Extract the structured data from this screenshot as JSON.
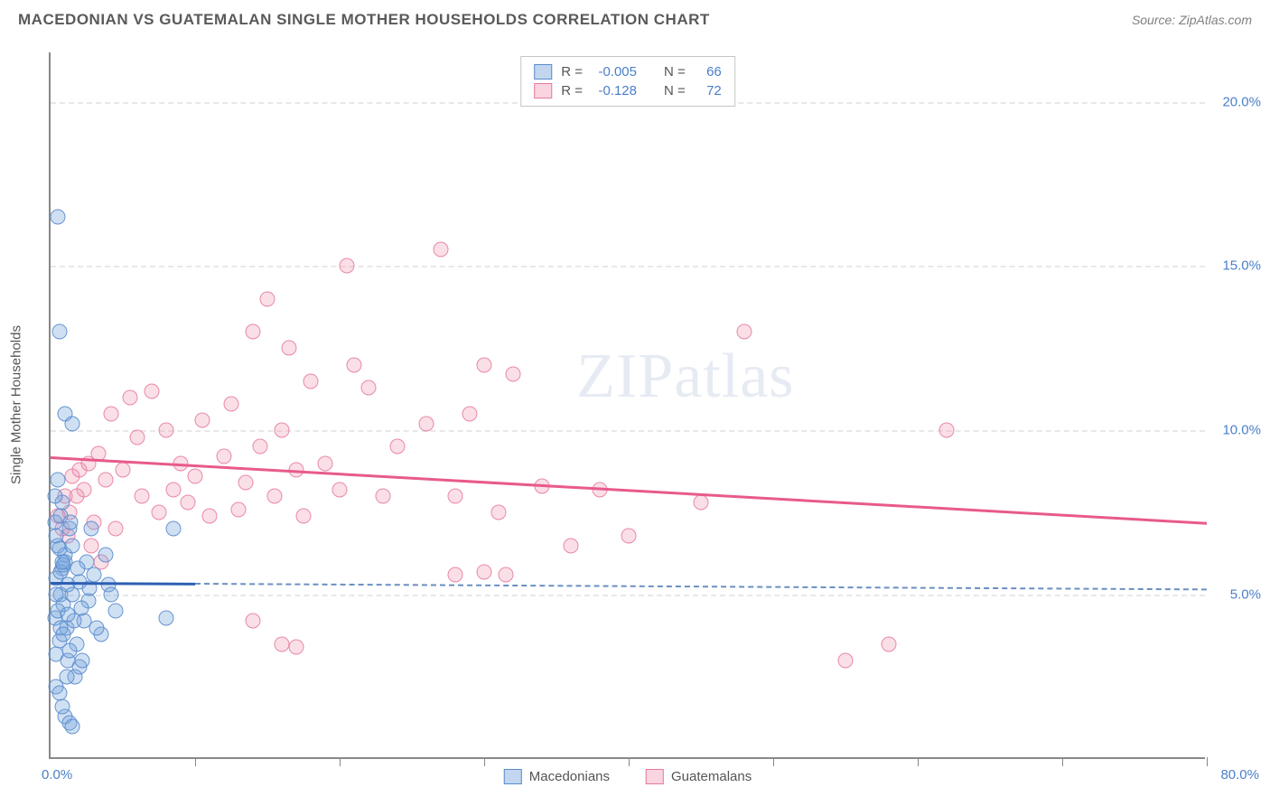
{
  "header": {
    "title": "MACEDONIAN VS GUATEMALAN SINGLE MOTHER HOUSEHOLDS CORRELATION CHART",
    "source": "Source: ZipAtlas.com"
  },
  "chart": {
    "type": "scatter",
    "ylabel": "Single Mother Households",
    "watermark": "ZIPatlas",
    "background_color": "#ffffff",
    "grid_color": "#e8e8e8",
    "axis_color": "#888888",
    "xlim": [
      0,
      80
    ],
    "ylim": [
      0,
      21.5
    ],
    "xticks": [
      0,
      10,
      20,
      30,
      40,
      50,
      60,
      70,
      80
    ],
    "xtick_labels": {
      "left": "0.0%",
      "right": "80.0%"
    },
    "yticks": [
      5,
      10,
      15,
      20
    ],
    "ytick_labels": [
      "5.0%",
      "10.0%",
      "15.0%",
      "20.0%"
    ],
    "marker_size": 17,
    "series": {
      "macedonians": {
        "label": "Macedonians",
        "color_fill": "rgba(121,165,220,0.35)",
        "color_stroke": "rgba(90,140,205,0.9)",
        "r": "-0.005",
        "n": "66",
        "trend": {
          "y_start": 5.4,
          "y_end": 5.2,
          "x_start": 0,
          "x_end_solid": 10,
          "x_end_dash": 80,
          "color": "#2d5fb3"
        },
        "points": [
          [
            0.3,
            7.2
          ],
          [
            0.5,
            16.5
          ],
          [
            0.6,
            13.0
          ],
          [
            0.5,
            6.5
          ],
          [
            0.8,
            5.8
          ],
          [
            1.0,
            6.2
          ],
          [
            0.4,
            5.5
          ],
          [
            0.7,
            5.0
          ],
          [
            1.2,
            5.3
          ],
          [
            0.9,
            4.7
          ],
          [
            0.3,
            4.3
          ],
          [
            1.1,
            4.0
          ],
          [
            0.6,
            3.6
          ],
          [
            0.4,
            3.2
          ],
          [
            0.8,
            7.8
          ],
          [
            1.3,
            7.0
          ],
          [
            1.0,
            6.0
          ],
          [
            0.5,
            4.5
          ],
          [
            0.7,
            5.7
          ],
          [
            1.5,
            5.0
          ],
          [
            2.0,
            5.4
          ],
          [
            2.3,
            4.2
          ],
          [
            2.5,
            6.0
          ],
          [
            3.0,
            5.6
          ],
          [
            3.5,
            3.8
          ],
          [
            4.0,
            5.3
          ],
          [
            4.5,
            4.5
          ],
          [
            1.0,
            1.3
          ],
          [
            1.3,
            1.1
          ],
          [
            0.8,
            1.6
          ],
          [
            1.5,
            1.0
          ],
          [
            1.7,
            2.5
          ],
          [
            2.0,
            2.8
          ],
          [
            1.2,
            3.0
          ],
          [
            0.4,
            2.2
          ],
          [
            0.6,
            2.0
          ],
          [
            1.8,
            3.5
          ],
          [
            2.2,
            3.0
          ],
          [
            2.6,
            4.8
          ],
          [
            0.5,
            8.5
          ],
          [
            0.3,
            8.0
          ],
          [
            0.7,
            7.4
          ],
          [
            1.4,
            7.2
          ],
          [
            2.8,
            7.0
          ],
          [
            3.2,
            4.0
          ],
          [
            1.1,
            2.5
          ],
          [
            0.9,
            5.9
          ],
          [
            1.6,
            4.2
          ],
          [
            0.4,
            6.8
          ],
          [
            0.7,
            4.0
          ],
          [
            1.3,
            3.3
          ],
          [
            1.9,
            5.8
          ],
          [
            2.7,
            5.2
          ],
          [
            0.6,
            6.4
          ],
          [
            0.9,
            3.8
          ],
          [
            1.5,
            6.5
          ],
          [
            2.1,
            4.6
          ],
          [
            0.4,
            5.0
          ],
          [
            0.8,
            6.0
          ],
          [
            1.2,
            4.4
          ],
          [
            3.8,
            6.2
          ],
          [
            4.2,
            5.0
          ],
          [
            1.0,
            10.5
          ],
          [
            1.5,
            10.2
          ],
          [
            8.5,
            7.0
          ],
          [
            8.0,
            4.3
          ]
        ]
      },
      "guatemalans": {
        "label": "Guatemalans",
        "color_fill": "rgba(240,150,175,0.3)",
        "color_stroke": "rgba(230,120,155,0.85)",
        "r": "-0.128",
        "n": "72",
        "trend": {
          "y_start": 9.2,
          "y_end": 7.2,
          "x_start": 0,
          "x_end_solid": 80,
          "color": "#e85a8c"
        },
        "points": [
          [
            1.0,
            8.0
          ],
          [
            1.3,
            7.5
          ],
          [
            1.5,
            8.6
          ],
          [
            2.0,
            8.8
          ],
          [
            2.3,
            8.2
          ],
          [
            2.6,
            9.0
          ],
          [
            3.0,
            7.2
          ],
          [
            3.3,
            9.3
          ],
          [
            3.8,
            8.5
          ],
          [
            4.2,
            10.5
          ],
          [
            4.5,
            7.0
          ],
          [
            5.0,
            8.8
          ],
          [
            5.5,
            11.0
          ],
          [
            6.0,
            9.8
          ],
          [
            6.3,
            8.0
          ],
          [
            7.0,
            11.2
          ],
          [
            7.5,
            7.5
          ],
          [
            8.0,
            10.0
          ],
          [
            8.5,
            8.2
          ],
          [
            9.0,
            9.0
          ],
          [
            9.5,
            7.8
          ],
          [
            10.0,
            8.6
          ],
          [
            10.5,
            10.3
          ],
          [
            11.0,
            7.4
          ],
          [
            12.0,
            9.2
          ],
          [
            12.5,
            10.8
          ],
          [
            13.0,
            7.6
          ],
          [
            13.5,
            8.4
          ],
          [
            14.0,
            13.0
          ],
          [
            14.5,
            9.5
          ],
          [
            15.0,
            14.0
          ],
          [
            15.5,
            8.0
          ],
          [
            16.0,
            10.0
          ],
          [
            16.5,
            12.5
          ],
          [
            17.0,
            8.8
          ],
          [
            17.5,
            7.4
          ],
          [
            18.0,
            11.5
          ],
          [
            19.0,
            9.0
          ],
          [
            20.0,
            8.2
          ],
          [
            20.5,
            15.0
          ],
          [
            21.0,
            12.0
          ],
          [
            22.0,
            11.3
          ],
          [
            23.0,
            8.0
          ],
          [
            24.0,
            9.5
          ],
          [
            26.0,
            10.2
          ],
          [
            27.0,
            15.5
          ],
          [
            28.0,
            8.0
          ],
          [
            29.0,
            10.5
          ],
          [
            30.0,
            12.0
          ],
          [
            31.0,
            7.5
          ],
          [
            32.0,
            11.7
          ],
          [
            34.0,
            8.3
          ],
          [
            36.0,
            6.5
          ],
          [
            38.0,
            8.2
          ],
          [
            40.0,
            6.8
          ],
          [
            45.0,
            7.8
          ],
          [
            48.0,
            13.0
          ],
          [
            55.0,
            3.0
          ],
          [
            58.0,
            3.5
          ],
          [
            62.0,
            10.0
          ],
          [
            16.0,
            3.5
          ],
          [
            17.0,
            3.4
          ],
          [
            14.0,
            4.2
          ],
          [
            2.8,
            6.5
          ],
          [
            3.5,
            6.0
          ],
          [
            0.8,
            7.0
          ],
          [
            0.5,
            7.4
          ],
          [
            1.2,
            6.8
          ],
          [
            1.8,
            8.0
          ],
          [
            28.0,
            5.6
          ],
          [
            30.0,
            5.7
          ],
          [
            31.5,
            5.6
          ]
        ]
      }
    },
    "legend_top": {
      "rows": [
        {
          "swatch": "blue",
          "r_label": "R =",
          "r": "-0.005",
          "n_label": "N =",
          "n": "66"
        },
        {
          "swatch": "pink",
          "r_label": "R =",
          "r": "-0.128",
          "n_label": "N =",
          "n": "72"
        }
      ]
    },
    "legend_bottom": [
      {
        "swatch": "blue",
        "label": "Macedonians"
      },
      {
        "swatch": "pink",
        "label": "Guatemalans"
      }
    ]
  }
}
